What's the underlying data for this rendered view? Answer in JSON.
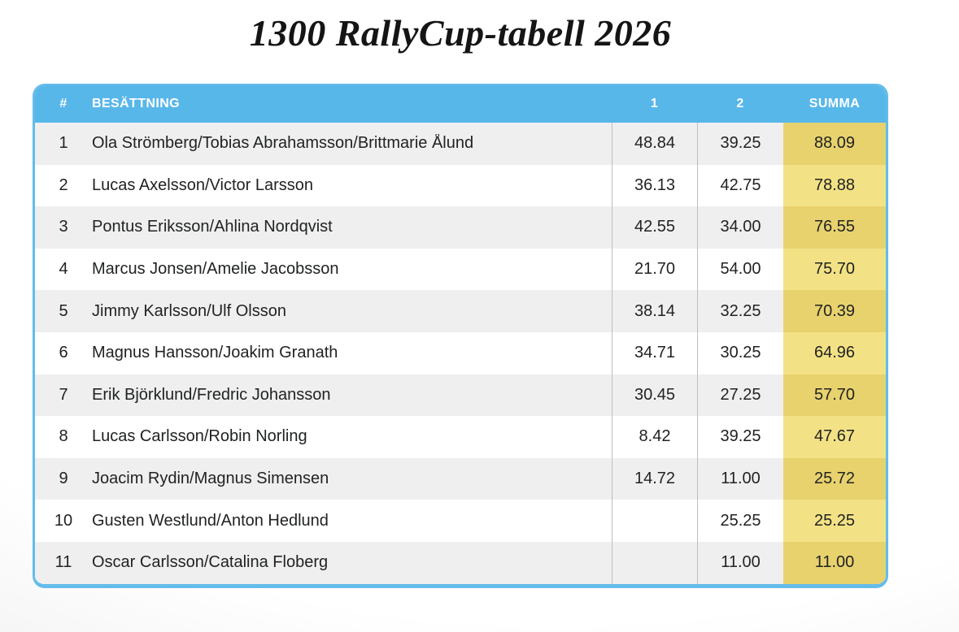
{
  "title": "1300 RallyCup-tabell 2026",
  "table": {
    "headers": {
      "rank": "#",
      "crew": "BESÄTTNING",
      "round1": "1",
      "round2": "2",
      "total": "SUMMA"
    },
    "rows": [
      {
        "rank": "1",
        "crew": "Ola Strömberg/Tobias Abrahamsson/Brittmarie Ålund",
        "round1": "48.84",
        "round2": "39.25",
        "total": "88.09"
      },
      {
        "rank": "2",
        "crew": "Lucas Axelsson/Victor Larsson",
        "round1": "36.13",
        "round2": "42.75",
        "total": "78.88"
      },
      {
        "rank": "3",
        "crew": "Pontus Eriksson/Ahlina Nordqvist",
        "round1": "42.55",
        "round2": "34.00",
        "total": "76.55"
      },
      {
        "rank": "4",
        "crew": "Marcus Jonsen/Amelie Jacobsson",
        "round1": "21.70",
        "round2": "54.00",
        "total": "75.70"
      },
      {
        "rank": "5",
        "crew": "Jimmy Karlsson/Ulf Olsson",
        "round1": "38.14",
        "round2": "32.25",
        "total": "70.39"
      },
      {
        "rank": "6",
        "crew": "Magnus Hansson/Joakim Granath",
        "round1": "34.71",
        "round2": "30.25",
        "total": "64.96"
      },
      {
        "rank": "7",
        "crew": "Erik Björklund/Fredric Johansson",
        "round1": "30.45",
        "round2": "27.25",
        "total": "57.70"
      },
      {
        "rank": "8",
        "crew": "Lucas Carlsson/Robin Norling",
        "round1": "8.42",
        "round2": "39.25",
        "total": "47.67"
      },
      {
        "rank": "9",
        "crew": "Joacim Rydin/Magnus Simensen",
        "round1": "14.72",
        "round2": "11.00",
        "total": "25.72"
      },
      {
        "rank": "10",
        "crew": "Gusten Westlund/Anton Hedlund",
        "round1": "",
        "round2": "25.25",
        "total": "25.25"
      },
      {
        "rank": "11",
        "crew": "Oscar Carlsson/Catalina Floberg",
        "round1": "",
        "round2": "11.00",
        "total": "11.00"
      }
    ]
  },
  "colors": {
    "header_bg": "#58B7E9",
    "border_blue": "#64BCEA",
    "row_alt": "#EFEFEF",
    "row_base": "#FFFFFF",
    "summa_dark": "#E8D26E",
    "summa_light": "#F3E285",
    "divider": "#BDBDBD",
    "text": "#212323"
  }
}
